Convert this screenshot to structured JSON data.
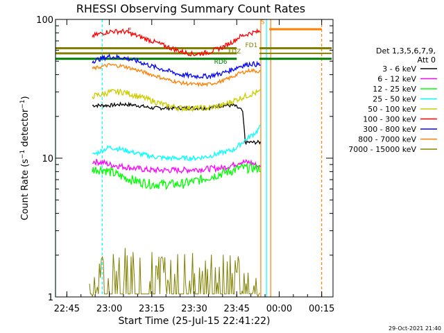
{
  "chart_data": {
    "type": "line",
    "title": "RHESSI Observing Summary Count Rates",
    "xlabel": "Start Time (25-Jul-15 22:41:22)",
    "ylabel": "Count Rate (s⁻¹ detector⁻¹)",
    "ylabel_main": "Count Rate (s",
    "ylabel_sup1": "−1",
    "ylabel_mid": " detector",
    "ylabel_sup2": "−1",
    "ylabel_end": ")",
    "yscale": "log",
    "ylim": [
      1,
      100
    ],
    "xlim_minutes": [
      -19,
      79
    ],
    "x_ticks": [
      {
        "label": "22:45",
        "minute": -15
      },
      {
        "label": "23:00",
        "minute": 0
      },
      {
        "label": "23:15",
        "minute": 15
      },
      {
        "label": "23:30",
        "minute": 30
      },
      {
        "label": "23:45",
        "minute": 45
      },
      {
        "label": "00:00",
        "minute": 60
      },
      {
        "label": "00:15",
        "minute": 75
      }
    ],
    "y_ticks": [
      {
        "label": "1",
        "value": 1
      },
      {
        "label": "10",
        "value": 10
      },
      {
        "label": "100",
        "value": 100
      }
    ],
    "legend_header": [
      "Det 1,3,5,6,7,9,",
      "Att 0"
    ],
    "legend_position": "right",
    "series": [
      {
        "name": "3 - 6 keV",
        "color": "#000000",
        "x": [
          -6,
          -2,
          0,
          5,
          10,
          15,
          20,
          25,
          30,
          35,
          40,
          44,
          47,
          48,
          50,
          53.5
        ],
        "y": [
          24,
          24,
          24,
          24.5,
          24,
          23,
          23,
          23,
          23,
          23,
          24,
          24,
          22,
          13,
          13,
          13
        ]
      },
      {
        "name": "6 - 12 keV",
        "color": "#ff00ff",
        "x": [
          -6,
          -2,
          0,
          5,
          10,
          15,
          20,
          25,
          30,
          35,
          40,
          44,
          46,
          50,
          53.5
        ],
        "y": [
          9.5,
          9.3,
          9.0,
          8.7,
          8.4,
          8.2,
          8.2,
          8.2,
          8.3,
          8.4,
          8.5,
          9.0,
          9.4,
          9.3,
          8.5
        ]
      },
      {
        "name": "12 - 25 keV",
        "color": "#00ff00",
        "x": [
          -6,
          -2,
          0,
          5,
          10,
          15,
          20,
          25,
          30,
          35,
          40,
          44,
          46,
          50,
          53.5
        ],
        "y": [
          8.3,
          8.3,
          8.0,
          7.3,
          6.8,
          6.5,
          6.5,
          6.5,
          6.8,
          7.3,
          7.8,
          8.2,
          8.5,
          8.5,
          8.5
        ]
      },
      {
        "name": "25 - 50 keV",
        "color": "#00ffff",
        "x": [
          -6,
          -2,
          0,
          5,
          10,
          15,
          20,
          25,
          30,
          35,
          40,
          44,
          46,
          48,
          50,
          52,
          53.5
        ],
        "y": [
          10.5,
          11.5,
          12,
          11.5,
          10.8,
          10.3,
          10,
          10,
          10,
          10.3,
          11,
          11.5,
          12.5,
          13.5,
          14.5,
          15.5,
          17
        ]
      },
      {
        "name": "50 - 100 keV",
        "color": "#cccc00",
        "x": [
          -6,
          -2,
          0,
          5,
          10,
          15,
          20,
          25,
          30,
          35,
          40,
          44,
          46,
          50,
          53.5
        ],
        "y": [
          28,
          29,
          30,
          30,
          28,
          26,
          24,
          23,
          23,
          23,
          24,
          26,
          27,
          29,
          30
        ]
      },
      {
        "name": "100 - 300 keV",
        "color": "#ff0000",
        "x": [
          -6,
          -2,
          0,
          5,
          10,
          15,
          20,
          25,
          30,
          35,
          40,
          44,
          46,
          50,
          53.5
        ],
        "y": [
          76,
          80,
          82,
          82,
          76,
          70,
          64,
          59,
          56,
          58,
          63,
          70,
          75,
          80,
          82
        ]
      },
      {
        "name": "300 - 800 keV",
        "color": "#0000ff",
        "x": [
          -6,
          -2,
          0,
          5,
          10,
          15,
          20,
          25,
          30,
          35,
          40,
          44,
          46,
          50,
          53.5
        ],
        "y": [
          50,
          53,
          54,
          53,
          50,
          46,
          43,
          40,
          39,
          39,
          41,
          44,
          46,
          48,
          47
        ]
      },
      {
        "name": "800 - 7000 keV",
        "color": "#ff8000",
        "x": [
          -6,
          -2,
          0,
          5,
          10,
          15,
          20,
          25,
          30,
          35,
          40,
          44,
          46,
          50,
          53.5
        ],
        "y": [
          44,
          46,
          47,
          46,
          43,
          40,
          37,
          35,
          34,
          34,
          36,
          39,
          41,
          43,
          42
        ]
      },
      {
        "name": "7000 - 15000 keV",
        "color": "#808000",
        "x": [
          -7,
          -2,
          0,
          10,
          20,
          30,
          40,
          45,
          53.5
        ],
        "y": [
          1,
          1.6,
          1.8,
          1.7,
          1.6,
          1.6,
          1.7,
          1.6,
          1.0
        ]
      }
    ],
    "annotations": [
      {
        "label": "F",
        "color": "#ff0000",
        "minute": 6.5,
        "value": 81
      },
      {
        "label": "S",
        "color": "#ff8000",
        "minute": 53.5,
        "value": 93
      },
      {
        "label": "FD1",
        "color": "#808000",
        "minute": 48,
        "value": 63
      },
      {
        "label": "FDZ",
        "color": "#808000",
        "minute": 42,
        "value": 57
      },
      {
        "label": "RD6",
        "color": "#008000",
        "minute": 37,
        "value": 48
      }
    ],
    "reference_lines": [
      {
        "name": "FD1",
        "color": "#808000",
        "value": 62
      },
      {
        "name": "FDZ",
        "color": "#808000",
        "value": 57
      },
      {
        "name": "RD6",
        "color": "#008000",
        "value": 52
      }
    ],
    "footer_date": "29-Oct-2021 21:40"
  }
}
